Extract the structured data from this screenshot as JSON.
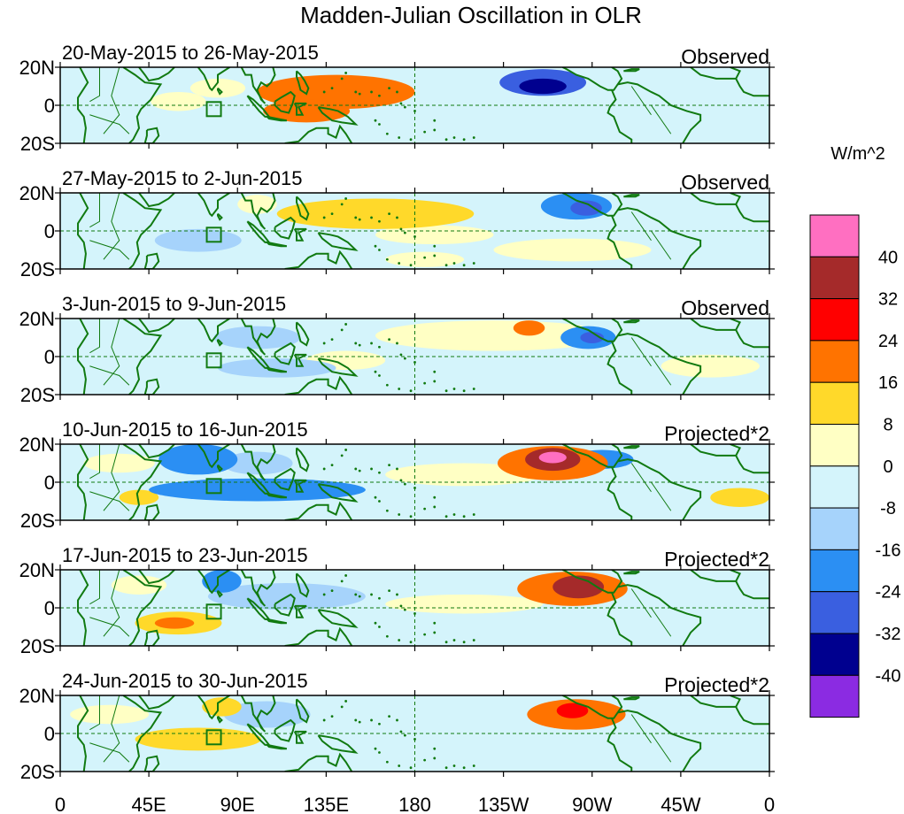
{
  "title": "Madden-Julian Oscillation in OLR",
  "lon_tick_labels": [
    "0",
    "45E",
    "90E",
    "135E",
    "180",
    "135W",
    "90W",
    "45W",
    "0"
  ],
  "lat_tick_labels": [
    "20N",
    "0",
    "20S"
  ],
  "panels": [
    {
      "date_label": "20-May-2015 to 26-May-2015",
      "type_label": "Observed",
      "anomalies": [
        {
          "lon": 140,
          "lat": 7,
          "rlon": 40,
          "rlat": 9,
          "value": 18
        },
        {
          "lon": 125,
          "lat": -3,
          "rlon": 22,
          "rlat": 6,
          "value": 22
        },
        {
          "lon": 80,
          "lat": 9,
          "rlon": 14,
          "rlat": 5,
          "value": 7
        },
        {
          "lon": 245,
          "lat": 12,
          "rlon": 22,
          "rlat": 7,
          "value": -26
        },
        {
          "lon": 245,
          "lat": 10,
          "rlon": 12,
          "rlat": 4,
          "value": -32
        },
        {
          "lon": 225,
          "lat": -8,
          "rlon": 60,
          "rlat": 9,
          "value": -6
        },
        {
          "lon": 30,
          "lat": -12,
          "rlon": 28,
          "rlat": 7,
          "value": -7
        },
        {
          "lon": 60,
          "lat": 2,
          "rlon": 14,
          "rlat": 5,
          "value": 6
        },
        {
          "lon": 325,
          "lat": 14,
          "rlon": 20,
          "rlat": 5,
          "value": -5
        }
      ]
    },
    {
      "date_label": "27-May-2015 to 2-Jun-2015",
      "type_label": "Observed",
      "anomalies": [
        {
          "lon": 160,
          "lat": 9,
          "rlon": 50,
          "rlat": 8,
          "value": 10
        },
        {
          "lon": 190,
          "lat": -2,
          "rlon": 30,
          "rlat": 5,
          "value": 7
        },
        {
          "lon": 262,
          "lat": 13,
          "rlon": 18,
          "rlat": 7,
          "value": -22
        },
        {
          "lon": 267,
          "lat": 12,
          "rlon": 8,
          "rlat": 4,
          "value": -28
        },
        {
          "lon": 80,
          "lat": 12,
          "rlon": 12,
          "rlat": 6,
          "value": -7
        },
        {
          "lon": 70,
          "lat": -5,
          "rlon": 22,
          "rlat": 6,
          "value": -8
        },
        {
          "lon": 100,
          "lat": 14,
          "rlon": 10,
          "rlat": 5,
          "value": 7
        },
        {
          "lon": 260,
          "lat": -10,
          "rlon": 40,
          "rlat": 6,
          "value": 5
        },
        {
          "lon": 185,
          "lat": -15,
          "rlon": 20,
          "rlat": 4,
          "value": 6
        }
      ]
    },
    {
      "date_label": "3-Jun-2015 to 9-Jun-2015",
      "type_label": "Observed",
      "anomalies": [
        {
          "lon": 220,
          "lat": 11,
          "rlon": 60,
          "rlat": 8,
          "value": 8
        },
        {
          "lon": 238,
          "lat": 15,
          "rlon": 8,
          "rlat": 4,
          "value": 17
        },
        {
          "lon": 268,
          "lat": 10,
          "rlon": 14,
          "rlat": 6,
          "value": -16
        },
        {
          "lon": 270,
          "lat": 10,
          "rlon": 6,
          "rlat": 3,
          "value": -24
        },
        {
          "lon": 100,
          "lat": 10,
          "rlon": 22,
          "rlat": 6,
          "value": -9
        },
        {
          "lon": 110,
          "lat": -6,
          "rlon": 30,
          "rlat": 5,
          "value": -9
        },
        {
          "lon": 60,
          "lat": 10,
          "rlon": 18,
          "rlat": 5,
          "value": -7
        },
        {
          "lon": 145,
          "lat": -2,
          "rlon": 20,
          "rlat": 5,
          "value": 5
        },
        {
          "lon": 330,
          "lat": -5,
          "rlon": 25,
          "rlat": 6,
          "value": 5
        }
      ]
    },
    {
      "date_label": "10-Jun-2015 to 16-Jun-2015",
      "type_label": "Projected*2",
      "anomalies": [
        {
          "lon": 250,
          "lat": 10,
          "rlon": 28,
          "rlat": 9,
          "value": 20
        },
        {
          "lon": 250,
          "lat": 12,
          "rlon": 14,
          "rlat": 6,
          "value": 38
        },
        {
          "lon": 250,
          "lat": 13,
          "rlon": 7,
          "rlat": 3,
          "value": 48
        },
        {
          "lon": 205,
          "lat": 4,
          "rlon": 40,
          "rlat": 6,
          "value": 7
        },
        {
          "lon": 70,
          "lat": 12,
          "rlon": 20,
          "rlat": 8,
          "value": -18
        },
        {
          "lon": 100,
          "lat": -4,
          "rlon": 55,
          "rlat": 6,
          "value": -18
        },
        {
          "lon": 100,
          "lat": 10,
          "rlon": 18,
          "rlat": 6,
          "value": -12
        },
        {
          "lon": 275,
          "lat": 12,
          "rlon": 16,
          "rlat": 5,
          "value": -16
        },
        {
          "lon": 40,
          "lat": -8,
          "rlon": 10,
          "rlat": 4,
          "value": 16
        },
        {
          "lon": 345,
          "lat": -8,
          "rlon": 15,
          "rlat": 5,
          "value": 9
        },
        {
          "lon": 30,
          "lat": 10,
          "rlon": 18,
          "rlat": 5,
          "value": 6
        }
      ]
    },
    {
      "date_label": "17-Jun-2015 to 23-Jun-2015",
      "type_label": "Projected*2",
      "anomalies": [
        {
          "lon": 260,
          "lat": 10,
          "rlon": 28,
          "rlat": 9,
          "value": 20
        },
        {
          "lon": 263,
          "lat": 11,
          "rlon": 13,
          "rlat": 6,
          "value": 34
        },
        {
          "lon": 60,
          "lat": -8,
          "rlon": 22,
          "rlat": 6,
          "value": 16
        },
        {
          "lon": 58,
          "lat": -8,
          "rlon": 10,
          "rlat": 3,
          "value": 22
        },
        {
          "lon": 82,
          "lat": 14,
          "rlon": 10,
          "rlat": 6,
          "value": -17
        },
        {
          "lon": 115,
          "lat": 6,
          "rlon": 40,
          "rlat": 7,
          "value": -9
        },
        {
          "lon": 205,
          "lat": 2,
          "rlon": 40,
          "rlat": 5,
          "value": 6
        },
        {
          "lon": 230,
          "lat": -12,
          "rlon": 25,
          "rlat": 4,
          "value": -7
        },
        {
          "lon": 40,
          "lat": 12,
          "rlon": 14,
          "rlat": 5,
          "value": 6
        }
      ]
    },
    {
      "date_label": "24-Jun-2015 to 30-Jun-2015",
      "type_label": "Projected*2",
      "anomalies": [
        {
          "lon": 262,
          "lat": 10,
          "rlon": 25,
          "rlat": 8,
          "value": 17
        },
        {
          "lon": 260,
          "lat": 12,
          "rlon": 8,
          "rlat": 4,
          "value": 25
        },
        {
          "lon": 70,
          "lat": -3,
          "rlon": 32,
          "rlat": 6,
          "value": 10
        },
        {
          "lon": 82,
          "lat": 14,
          "rlon": 10,
          "rlat": 5,
          "value": 12
        },
        {
          "lon": 105,
          "lat": 10,
          "rlon": 22,
          "rlat": 7,
          "value": -8
        },
        {
          "lon": 150,
          "lat": 2,
          "rlon": 20,
          "rlat": 5,
          "value": -6
        },
        {
          "lon": 225,
          "lat": -5,
          "rlon": 40,
          "rlat": 8,
          "value": -7
        },
        {
          "lon": 325,
          "lat": 8,
          "rlon": 25,
          "rlat": 6,
          "value": -6
        },
        {
          "lon": 25,
          "lat": 10,
          "rlon": 20,
          "rlat": 5,
          "value": 6
        }
      ]
    }
  ],
  "colorbar": {
    "unit_label": "W/m^2",
    "levels": [
      "40",
      "32",
      "24",
      "16",
      "8",
      "0",
      "-8",
      "-16",
      "-24",
      "-32",
      "-40"
    ],
    "colors": [
      "#ff6fc1",
      "#a52a2a",
      "#ff0000",
      "#ff7300",
      "#ffd92a",
      "#ffffc4",
      "#d4f4fb",
      "#a6d3fb",
      "#2b8ff3",
      "#3a5fe0",
      "#00008f",
      "#8b2be2"
    ],
    "bin_edges": [
      48,
      40,
      32,
      24,
      16,
      8,
      0,
      -8,
      -16,
      -24,
      -32,
      -40,
      -48
    ]
  },
  "colors": {
    "coastline": "#117a11",
    "reference_line": "#117a11",
    "background_field": "#d4f4fb"
  }
}
